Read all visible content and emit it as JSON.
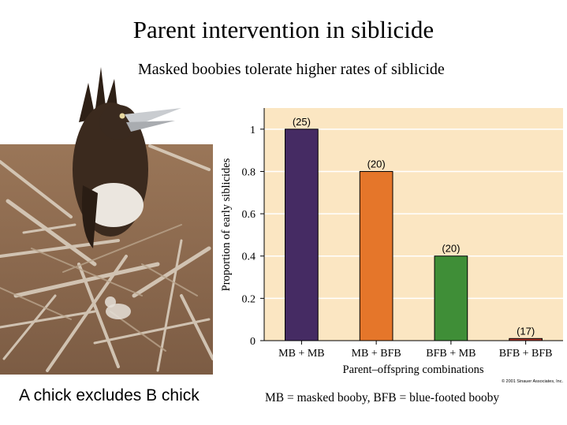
{
  "slide": {
    "title": "Parent intervention in siblicide",
    "subtitle": "Masked boobies tolerate higher rates of siblicide",
    "photo_caption": "A chick excludes B chick",
    "legend_note": "MB = masked booby, BFB = blue-footed booby"
  },
  "colors": {
    "plot_background": "#fbe6c2",
    "gridline": "#ffffff",
    "bar_fills": [
      "#452b63",
      "#e5762a",
      "#3f8e37",
      "#b5362a"
    ]
  },
  "chart_data": {
    "type": "bar",
    "categories": [
      "MB + MB",
      "MB + BFB",
      "BFB + MB",
      "BFB + BFB"
    ],
    "values": [
      1.0,
      0.8,
      0.4,
      0.01
    ],
    "data_labels": [
      "(25)",
      "(20)",
      "(20)",
      "(17)"
    ],
    "title": "",
    "xlabel": "Parent–offspring combinations",
    "ylabel": "Proportion of early siblicides",
    "ylim": [
      0,
      1.1
    ],
    "yticks": [
      0,
      0.2,
      0.4,
      0.6,
      0.8,
      1
    ],
    "ytick_labels": [
      "0",
      "0.2",
      "0.4",
      "0.6",
      "0.8",
      "1"
    ],
    "grid": true,
    "copyright": "© 2001 Sinauer Associates, Inc."
  }
}
